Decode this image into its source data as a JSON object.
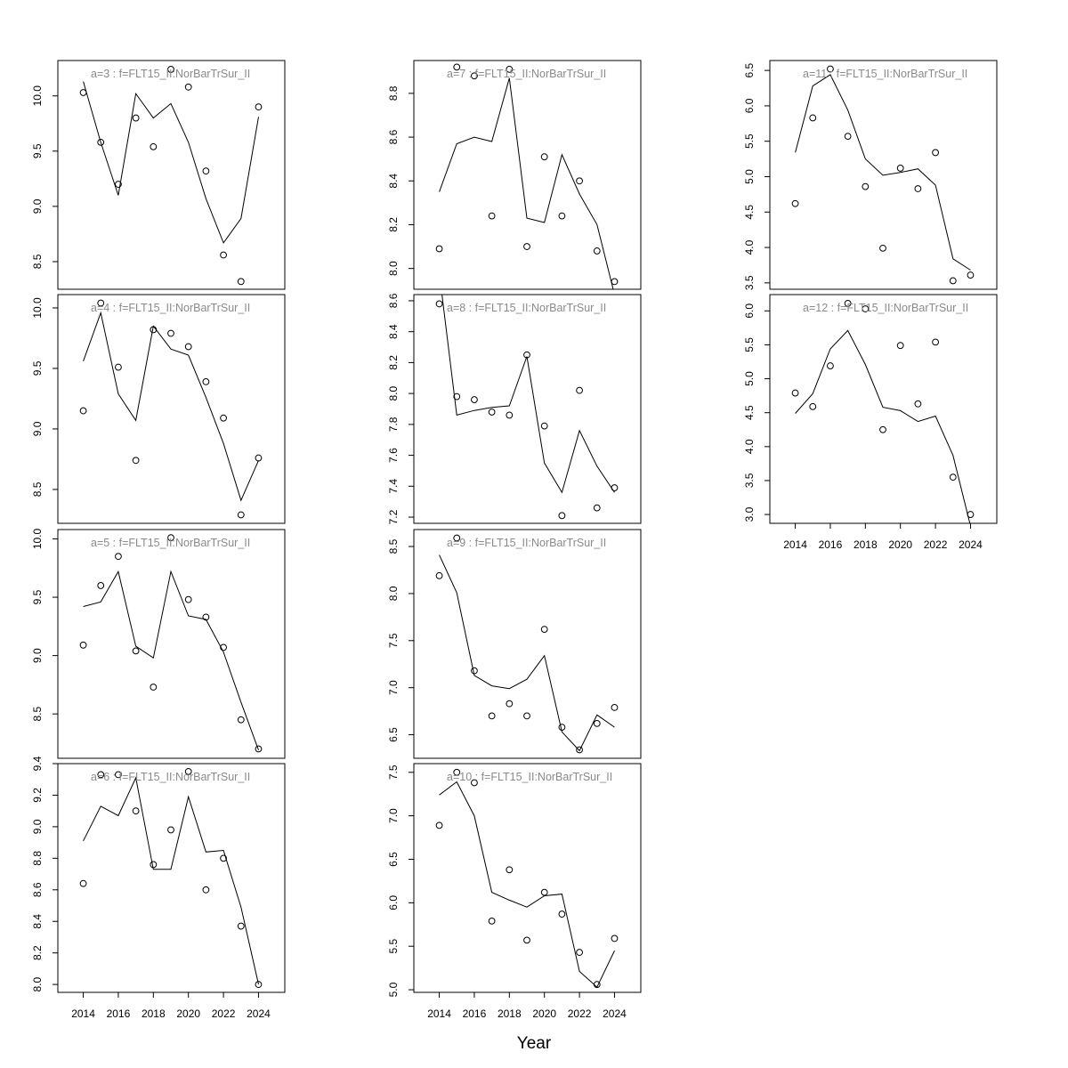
{
  "chart_data": {
    "type": "scatter+line",
    "xlabel": "Year",
    "x": [
      2014,
      2015,
      2016,
      2017,
      2018,
      2019,
      2020,
      2021,
      2022,
      2023,
      2024
    ],
    "x_ticks": [
      2014,
      2016,
      2018,
      2020,
      2022,
      2024
    ],
    "xlim": [
      2012.55,
      2025.5
    ],
    "grid": false,
    "panels": [
      {
        "title": "a=3  :  f=FLT15_II:NorBarTrSur_II",
        "ylim": [
          8.25,
          10.32
        ],
        "y_ticks": [
          "8.5",
          "9.0",
          "9.5",
          "10.0"
        ],
        "observed": [
          10.03,
          9.58,
          9.2,
          9.8,
          9.54,
          10.24,
          10.08,
          9.32,
          8.56,
          8.32,
          9.9
        ],
        "fitted": [
          10.13,
          9.58,
          9.1,
          10.02,
          9.8,
          9.93,
          9.58,
          9.07,
          8.67,
          8.89,
          9.81
        ]
      },
      {
        "title": "a=4  :  f=FLT15_II:NorBarTrSur_II",
        "ylim": [
          8.22,
          10.11
        ],
        "y_ticks": [
          "8.5",
          "9.0",
          "9.5",
          "10.0"
        ],
        "observed": [
          9.15,
          10.04,
          9.51,
          8.74,
          9.82,
          9.79,
          9.68,
          9.39,
          9.09,
          8.29,
          8.76
        ],
        "fitted": [
          9.56,
          9.96,
          9.29,
          9.07,
          9.85,
          9.66,
          9.61,
          9.26,
          8.88,
          8.41,
          8.74
        ]
      },
      {
        "title": "a=5  :  f=FLT15_II:NorBarTrSur_II",
        "ylim": [
          8.12,
          10.08
        ],
        "y_ticks": [
          "8.5",
          "9.0",
          "9.5",
          "10.0"
        ],
        "observed": [
          9.09,
          9.6,
          9.85,
          9.04,
          8.73,
          10.01,
          9.48,
          9.33,
          9.07,
          8.45,
          8.2
        ],
        "fitted": [
          9.42,
          9.46,
          9.72,
          9.08,
          8.98,
          9.72,
          9.34,
          9.31,
          9.03,
          8.6,
          8.19
        ]
      },
      {
        "title": "a=6  :  f=FLT15_II:NorBarTrSur_II",
        "ylim": [
          7.95,
          9.4
        ],
        "y_ticks": [
          "8.0",
          "8.2",
          "8.4",
          "8.6",
          "8.8",
          "9.0",
          "9.2",
          "9.4"
        ],
        "observed": [
          8.64,
          9.33,
          9.33,
          9.1,
          8.76,
          8.98,
          9.35,
          8.6,
          8.8,
          8.37,
          8.0
        ],
        "fitted": [
          8.91,
          9.13,
          9.07,
          9.31,
          8.73,
          8.73,
          9.19,
          8.84,
          8.85,
          8.49,
          8.0
        ]
      },
      {
        "title": "a=7  :  f=FLT15_II:NorBarTrSur_II",
        "ylim": [
          7.905,
          8.95
        ],
        "y_ticks": [
          "8.0",
          "8.2",
          "8.4",
          "8.6",
          "8.8"
        ],
        "observed": [
          8.09,
          8.92,
          8.88,
          8.24,
          8.91,
          8.1,
          8.51,
          8.24,
          8.4,
          8.08,
          7.94
        ],
        "fitted": [
          8.35,
          8.57,
          8.6,
          8.58,
          8.87,
          8.23,
          8.21,
          8.52,
          8.34,
          8.2,
          7.88
        ]
      },
      {
        "title": "a=8  :  f=FLT15_II:NorBarTrSur_II",
        "ylim": [
          7.16,
          8.64
        ],
        "y_ticks": [
          "7.2",
          "7.4",
          "7.6",
          "7.8",
          "8.0",
          "8.2",
          "8.4",
          "8.6"
        ],
        "observed": [
          8.58,
          7.98,
          7.96,
          7.88,
          7.86,
          8.25,
          7.79,
          7.21,
          8.02,
          7.26,
          7.39
        ],
        "fitted": [
          8.78,
          7.86,
          7.89,
          7.91,
          7.92,
          8.24,
          7.55,
          7.36,
          7.76,
          7.53,
          7.36
        ]
      },
      {
        "title": "a=9  :  f=FLT15_II:NorBarTrSur_II",
        "ylim": [
          6.25,
          8.68
        ],
        "y_ticks": [
          "6.5",
          "7.0",
          "7.5",
          "8.0",
          "8.5"
        ],
        "observed": [
          8.19,
          8.59,
          7.18,
          6.7,
          6.83,
          6.7,
          7.62,
          6.58,
          6.34,
          6.62,
          6.79
        ],
        "fitted": [
          8.41,
          8.01,
          7.13,
          7.02,
          6.99,
          7.09,
          7.34,
          6.53,
          6.33,
          6.71,
          6.58
        ]
      },
      {
        "title": "a=10  :  f=FLT15_II:NorBarTrSur_II",
        "ylim": [
          4.97,
          7.6
        ],
        "y_ticks": [
          "5.0",
          "5.5",
          "6.0",
          "6.5",
          "7.0",
          "7.5"
        ],
        "observed": [
          6.89,
          7.5,
          7.38,
          5.79,
          6.38,
          5.57,
          6.12,
          5.87,
          5.43,
          5.06,
          5.59
        ],
        "fitted": [
          7.24,
          7.39,
          7.0,
          6.12,
          6.03,
          5.95,
          6.08,
          6.1,
          5.21,
          5.03,
          5.45
        ]
      },
      {
        "title": "a=11  :  f=FLT15_II:NorBarTrSur_II",
        "ylim": [
          3.41,
          6.64
        ],
        "y_ticks": [
          "3.5",
          "4.0",
          "4.5",
          "5.0",
          "5.5",
          "6.0",
          "6.5"
        ],
        "observed": [
          4.62,
          5.83,
          6.52,
          5.57,
          4.86,
          3.99,
          5.12,
          4.83,
          5.34,
          3.53,
          3.61
        ],
        "fitted": [
          5.34,
          6.28,
          6.44,
          5.94,
          5.25,
          5.02,
          5.06,
          5.11,
          4.88,
          3.84,
          3.68
        ]
      },
      {
        "title": "a=12  :  f=FLT15_II:NorBarTrSur_II",
        "ylim": [
          2.87,
          6.24
        ],
        "y_ticks": [
          "3.0",
          "3.5",
          "4.0",
          "4.5",
          "5.0",
          "5.5",
          "6.0"
        ],
        "observed": [
          4.79,
          4.59,
          5.19,
          6.11,
          6.03,
          4.25,
          5.49,
          4.63,
          5.54,
          3.55,
          3.0
        ],
        "fitted": [
          4.49,
          4.78,
          5.44,
          5.71,
          5.21,
          4.58,
          4.53,
          4.37,
          4.45,
          3.87,
          2.83
        ]
      }
    ]
  }
}
